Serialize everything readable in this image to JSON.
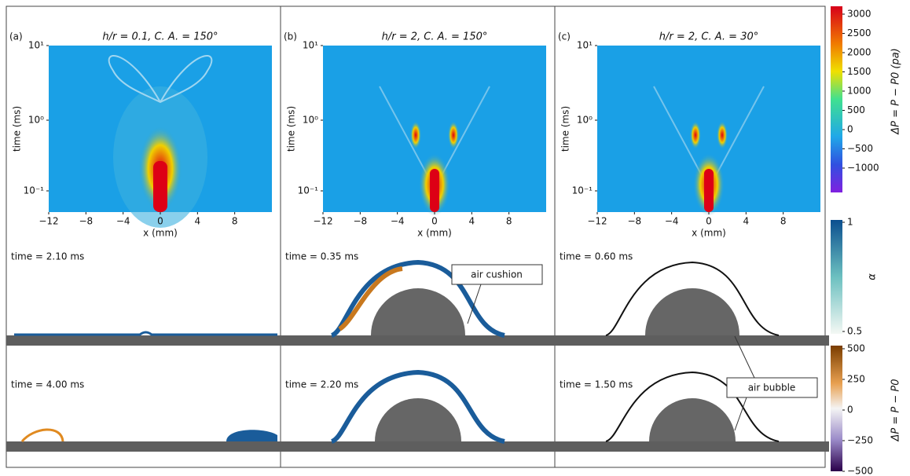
{
  "panels": [
    {
      "label": "(a)",
      "title": "h/r = 0.1, C. A. = 150°",
      "y_axis_label": "time (ms)",
      "x_axis_label": "x (mm)",
      "yticks": [
        "10¹",
        "10⁰",
        "10⁻¹"
      ],
      "xticks": [
        "−12",
        "−8",
        "−4",
        "0",
        "4",
        "8"
      ],
      "snapshots": [
        "time = 2.10 ms",
        "time = 4.00 ms"
      ]
    },
    {
      "label": "(b)",
      "title": "h/r = 2, C. A. = 150°",
      "y_axis_label": "time (ms)",
      "x_axis_label": "x (mm)",
      "yticks": [
        "10¹",
        "10⁰",
        "10⁻¹"
      ],
      "xticks": [
        "−12",
        "−8",
        "−4",
        "0",
        "4",
        "8"
      ],
      "snapshots": [
        "time = 0.35 ms",
        "time = 2.20 ms"
      ]
    },
    {
      "label": "(c)",
      "title": "h/r = 2, C. A. = 30°",
      "y_axis_label": "time (ms)",
      "x_axis_label": "x (mm)",
      "yticks": [
        "10¹",
        "10⁰",
        "10⁻¹"
      ],
      "xticks": [
        "−12",
        "−8",
        "−4",
        "0",
        "4",
        "8"
      ],
      "snapshots": [
        "time = 0.60 ms",
        "time = 1.50 ms"
      ]
    }
  ],
  "colorbars": [
    {
      "label": "ΔP = P − P0 (pa)",
      "ticks": [
        "3000",
        "2500",
        "2000",
        "1500",
        "1000",
        "500",
        "0",
        "−500",
        "−1000"
      ]
    },
    {
      "label": "α",
      "ticks": [
        "1",
        "0.5"
      ]
    },
    {
      "label": "ΔP = P − P0",
      "ticks": [
        "500",
        "250",
        "0",
        "−250",
        "−500"
      ]
    }
  ],
  "annotations": [
    "air cushion",
    "air bubble"
  ]
}
